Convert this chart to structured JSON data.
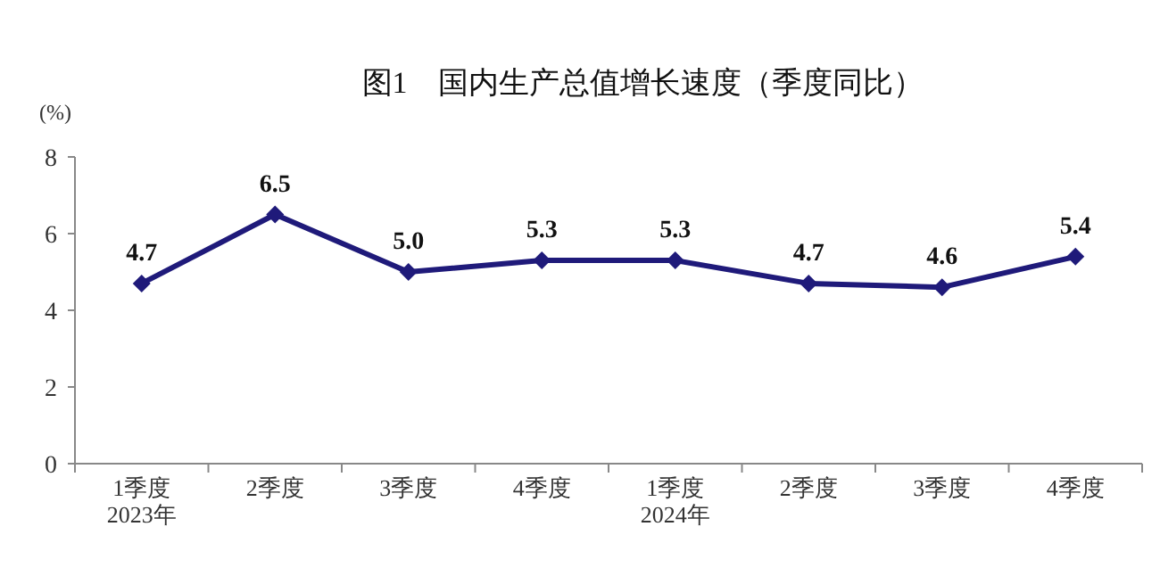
{
  "chart_data": {
    "type": "line",
    "title": "图1　国内生产总值增长速度（季度同比）",
    "ylabel": "(%)",
    "categories": [
      "1季度\n2023年",
      "2季度",
      "3季度",
      "4季度",
      "1季度\n2024年",
      "2季度",
      "3季度",
      "4季度"
    ],
    "series": [
      {
        "color": "#1f1a7a",
        "values": [
          4.7,
          6.5,
          5.0,
          5.3,
          5.3,
          4.7,
          4.6,
          5.4
        ],
        "value_labels": [
          "4.7",
          "6.5",
          "5.0",
          "5.3",
          "5.3",
          "4.7",
          "4.6",
          "5.4"
        ]
      }
    ],
    "ylim": [
      0,
      8
    ],
    "yticks": [
      0,
      2,
      4,
      6,
      8
    ],
    "marker": "diamond",
    "line_style": "solid",
    "grid": false
  }
}
